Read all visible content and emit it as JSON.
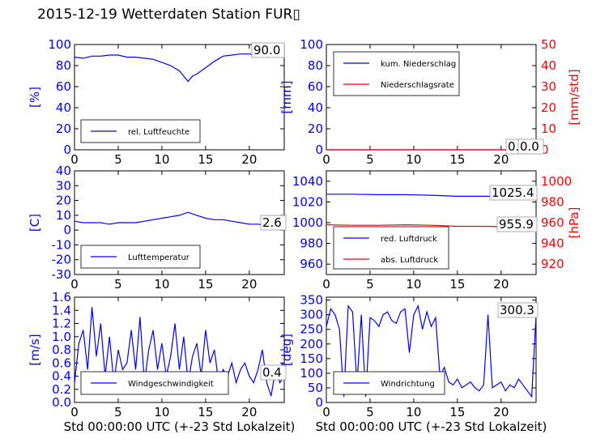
{
  "title": "2015-12-19 Wetterdaten Station FUR▯",
  "colors": {
    "blue": "#0000ff",
    "red": "#ff0000",
    "black": "#000000"
  },
  "chart_data": [
    {
      "type": "line",
      "ylabel": "[%]",
      "ylim": [
        0,
        100
      ],
      "yticks": [
        0,
        20,
        40,
        60,
        80,
        100
      ],
      "xlim": [
        0,
        24
      ],
      "xticks": [
        0,
        5,
        10,
        15,
        20
      ],
      "readout": "90.0",
      "legend_position": "lower-left",
      "series": [
        {
          "name": "rel. Luftfeuchte",
          "color": "#0000ff",
          "x": [
            0,
            1,
            2,
            3,
            4,
            5,
            6,
            7,
            8,
            9,
            10,
            11,
            12,
            13,
            13.5,
            14,
            15,
            16,
            17,
            18,
            19,
            20,
            21,
            22,
            23,
            24
          ],
          "y": [
            88,
            87,
            89,
            89,
            90,
            90,
            88,
            88,
            87,
            86,
            83,
            80,
            75,
            65,
            70,
            72,
            78,
            84,
            89,
            90,
            91,
            91,
            90,
            90,
            90,
            90
          ]
        }
      ]
    },
    {
      "type": "line",
      "ylabel": "[mm]",
      "ylabel_right": "[mm/std]",
      "ylim": [
        0,
        100
      ],
      "ylim_right": [
        0,
        50
      ],
      "yticks": [
        0,
        20,
        40,
        60,
        80,
        100
      ],
      "yticks_right": [
        0,
        10,
        20,
        30,
        40,
        50
      ],
      "xlim": [
        0,
        24
      ],
      "xticks": [
        0,
        5,
        10,
        15,
        20
      ],
      "readout": "0.0",
      "readout2": "0.0",
      "legend_position": "upper-left",
      "series": [
        {
          "name": "kum. Niederschlag",
          "color": "#0000ff",
          "axis": "left",
          "x": [
            0,
            24
          ],
          "y": [
            0,
            0
          ]
        },
        {
          "name": "Niederschlagsrate",
          "color": "#ff0000",
          "axis": "right",
          "x": [
            0,
            24
          ],
          "y": [
            0,
            0
          ]
        }
      ]
    },
    {
      "type": "line",
      "ylabel": "[C]",
      "ylim": [
        -30,
        40
      ],
      "yticks": [
        -30,
        -20,
        -10,
        0,
        10,
        20,
        30,
        40
      ],
      "xlim": [
        0,
        24
      ],
      "xticks": [
        0,
        5,
        10,
        15,
        20
      ],
      "readout": "2.6",
      "legend_position": "lower-left",
      "series": [
        {
          "name": "Lufttemperatur",
          "color": "#0000ff",
          "x": [
            0,
            1,
            2,
            3,
            4,
            5,
            6,
            7,
            8,
            9,
            10,
            11,
            12,
            13,
            14,
            15,
            16,
            17,
            18,
            19,
            20,
            21,
            22,
            23,
            24
          ],
          "y": [
            6,
            5,
            5,
            5,
            4,
            5,
            5,
            5,
            6,
            7,
            8,
            9,
            10,
            12,
            10,
            8,
            7,
            7,
            6,
            5,
            4,
            4,
            3,
            3,
            3
          ]
        }
      ]
    },
    {
      "type": "line",
      "ylabel": "",
      "ylabel_right": "[hPa]",
      "ylim": [
        950,
        1050
      ],
      "ylim_right": [
        910,
        1010
      ],
      "yticks": [
        960,
        980,
        1000,
        1020,
        1040
      ],
      "yticks_right": [
        920,
        940,
        960,
        980,
        1000
      ],
      "xlim": [
        0,
        24
      ],
      "xticks": [
        0,
        5,
        10,
        15,
        20
      ],
      "readout": "1025.4",
      "readout2": "955.9",
      "legend_position": "lower-left",
      "series": [
        {
          "name": "red. Luftdruck",
          "color": "#0000ff",
          "axis": "left",
          "x": [
            0,
            3,
            6,
            9,
            12,
            15,
            18,
            21,
            24
          ],
          "y": [
            1027.5,
            1027.5,
            1027,
            1027,
            1026.5,
            1025.5,
            1025.5,
            1025.5,
            1025.4
          ]
        },
        {
          "name": "abs. Luftdruck",
          "color": "#ff0000",
          "axis": "right",
          "x": [
            0,
            3,
            6,
            9,
            12,
            15,
            18,
            21,
            24
          ],
          "y": [
            958,
            957.5,
            957.5,
            958,
            957.5,
            956.5,
            956.5,
            956,
            955.9
          ]
        }
      ]
    },
    {
      "type": "line",
      "ylabel": "[m/s]",
      "ylim": [
        0,
        1.6
      ],
      "yticks": [
        0.0,
        0.2,
        0.4,
        0.6,
        0.8,
        1.0,
        1.2,
        1.4,
        1.6
      ],
      "xlim": [
        0,
        24
      ],
      "xticks": [
        0,
        5,
        10,
        15,
        20
      ],
      "xlabel": "Std 00:00:00 UTC (+-23 Std Lokalzeit)",
      "readout": "0.4",
      "legend_position": "lower-center",
      "series": [
        {
          "name": "Windgeschwindigkeit",
          "color": "#0000ff",
          "x": [
            0,
            0.5,
            1,
            1.5,
            2,
            2.5,
            3,
            3.5,
            4,
            4.5,
            5,
            5.5,
            6,
            6.5,
            7,
            7.5,
            8,
            8.5,
            9,
            9.5,
            10,
            10.5,
            11,
            11.5,
            12,
            12.5,
            13,
            13.5,
            14,
            14.5,
            15,
            15.5,
            16,
            16.5,
            17,
            17.5,
            18,
            18.5,
            19,
            19.5,
            20,
            20.5,
            21,
            21.5,
            22,
            22.5,
            23,
            23.5,
            24
          ],
          "y": [
            0.3,
            0.9,
            1.1,
            0.5,
            1.45,
            0.7,
            1.2,
            0.4,
            1.0,
            0.3,
            0.8,
            0.5,
            0.6,
            1.1,
            0.5,
            1.3,
            0.3,
            0.8,
            1.1,
            0.5,
            0.9,
            0.4,
            0.7,
            1.2,
            0.5,
            1.0,
            0.3,
            0.7,
            0.9,
            0.4,
            1.1,
            0.6,
            0.8,
            0.3,
            0.5,
            0.4,
            0.6,
            0.3,
            0.5,
            0.6,
            0.4,
            0.3,
            0.5,
            0.8,
            0.3,
            0.1,
            0.5,
            0.3,
            0.4
          ]
        }
      ]
    },
    {
      "type": "line",
      "ylabel": "[deg]",
      "ylim": [
        0,
        360
      ],
      "yticks": [
        0,
        50,
        100,
        150,
        200,
        250,
        300,
        350
      ],
      "xlim": [
        0,
        24
      ],
      "xticks": [
        0,
        5,
        10,
        15,
        20
      ],
      "xlabel": "Std 00:00:00 UTC (+-23 Std Lokalzeit)",
      "readout": "300.3",
      "legend_position": "lower-left",
      "series": [
        {
          "name": "Windrichtung",
          "color": "#0000ff",
          "x": [
            0,
            0.5,
            1,
            1.5,
            2,
            2.5,
            3,
            3.5,
            4,
            4.5,
            5,
            5.5,
            6,
            6.5,
            7,
            7.5,
            8,
            8.5,
            9,
            9.5,
            10,
            10.5,
            11,
            11.5,
            12,
            12.5,
            13,
            13.5,
            14,
            14.5,
            15,
            15.5,
            16,
            16.5,
            17,
            17.5,
            18,
            18.5,
            19,
            19.5,
            20,
            20.5,
            21,
            21.5,
            22,
            22.5,
            23,
            23.5,
            24
          ],
          "y": [
            260,
            320,
            300,
            250,
            20,
            330,
            310,
            60,
            300,
            20,
            290,
            280,
            260,
            300,
            310,
            280,
            270,
            310,
            320,
            170,
            300,
            330,
            250,
            310,
            260,
            290,
            90,
            120,
            70,
            60,
            80,
            50,
            60,
            70,
            50,
            40,
            60,
            300,
            50,
            60,
            70,
            40,
            60,
            50,
            80,
            60,
            40,
            20,
            300
          ]
        }
      ]
    }
  ]
}
